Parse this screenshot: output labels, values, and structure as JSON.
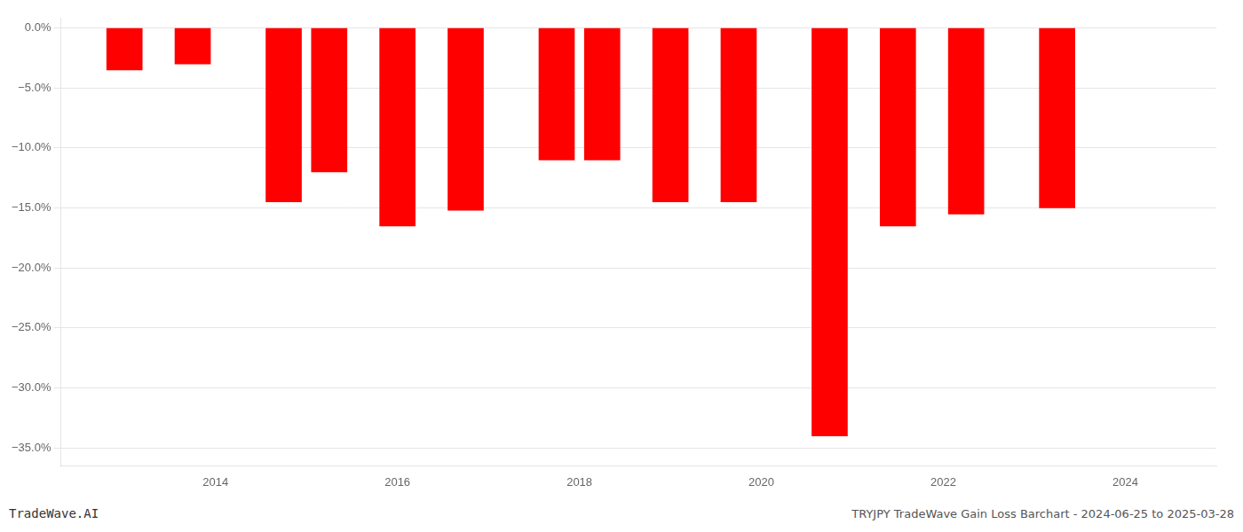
{
  "chart_data": {
    "type": "bar",
    "x": [
      2013.0,
      2013.75,
      2014.75,
      2015.25,
      2016.0,
      2016.75,
      2017.75,
      2018.25,
      2019.0,
      2019.75,
      2020.75,
      2021.5,
      2022.25,
      2023.25
    ],
    "values": [
      -3.5,
      -3.0,
      -14.5,
      -12.0,
      -16.5,
      -15.2,
      -11.0,
      -11.0,
      -14.5,
      -14.5,
      -34.0,
      -16.5,
      -15.5,
      -15.0
    ],
    "color": "#ff0000",
    "xlim": [
      2012.3,
      2025.0
    ],
    "xticks": [
      2014,
      2016,
      2018,
      2020,
      2022,
      2024
    ],
    "ylim": [
      -36.5,
      0.8
    ],
    "yticks": [
      {
        "value": 0,
        "label": "0.0%"
      },
      {
        "value": -5,
        "label": "−5.0%"
      },
      {
        "value": -10,
        "label": "−10.0%"
      },
      {
        "value": -15,
        "label": "−15.0%"
      },
      {
        "value": -20,
        "label": "−20.0%"
      },
      {
        "value": -25,
        "label": "−25.0%"
      },
      {
        "value": -30,
        "label": "−30.0%"
      },
      {
        "value": -35,
        "label": "−35.0%"
      }
    ],
    "grid": true,
    "annotations": [
      "TradeWave.AI",
      "TRYJPY TradeWave Gain Loss Barchart - 2024-06-25 to 2025-03-28"
    ]
  }
}
